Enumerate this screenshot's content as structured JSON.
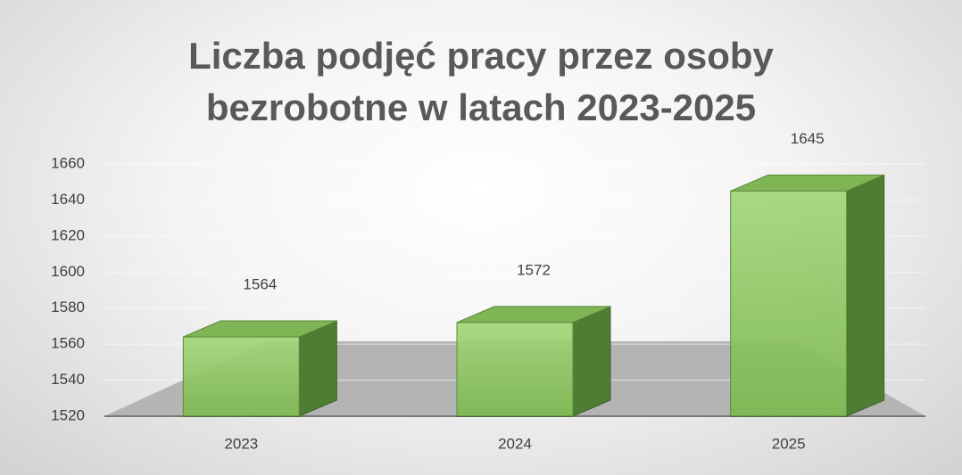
{
  "chart_data": {
    "type": "bar3d",
    "title": "Liczba podjęć pracy przez osoby bezrobotne w latach 2023-2025",
    "categories": [
      "2023",
      "2024",
      "2025"
    ],
    "values": [
      1564,
      1572,
      1645
    ],
    "color": "#8cc65f",
    "ylim": [
      1520,
      1660
    ],
    "yticks": [
      1520,
      1540,
      1560,
      1580,
      1600,
      1620,
      1640,
      1660
    ],
    "grid": true
  }
}
